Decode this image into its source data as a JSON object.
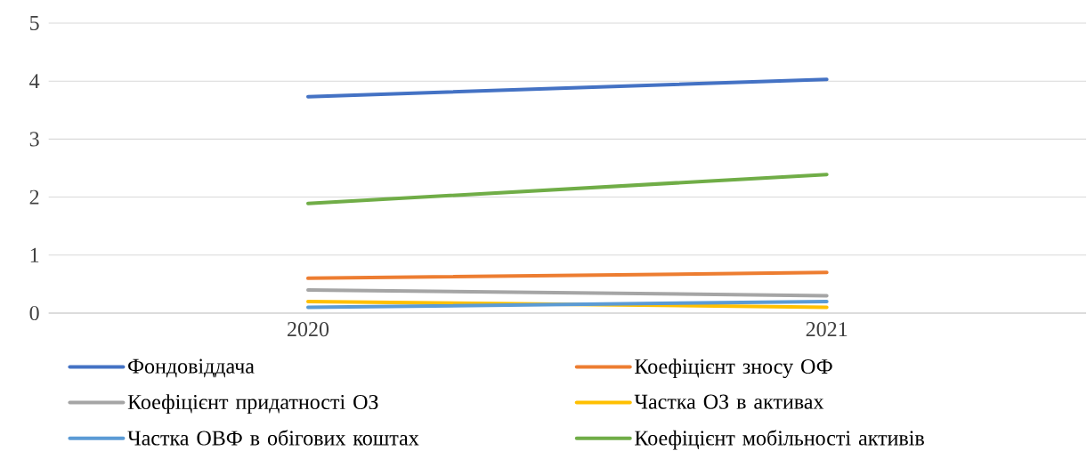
{
  "chart_data": {
    "type": "line",
    "categories": [
      "2020",
      "2021"
    ],
    "series": [
      {
        "name": "Фондовіддача",
        "color": "#4472c4",
        "values": [
          3.73,
          4.03
        ]
      },
      {
        "name": "Коефіцієнт зносу ОФ",
        "color": "#ed7d31",
        "values": [
          0.6,
          0.7
        ]
      },
      {
        "name": "Коефіцієнт придатності ОЗ",
        "color": "#a5a5a5",
        "values": [
          0.4,
          0.3
        ]
      },
      {
        "name": "Частка ОЗ в активах",
        "color": "#ffc000",
        "values": [
          0.2,
          0.1
        ]
      },
      {
        "name": "Частка ОВФ в обігових коштах",
        "color": "#5b9bd5",
        "values": [
          0.1,
          0.2
        ]
      },
      {
        "name": "Коефіцієнт мобільності активів",
        "color": "#70ad47",
        "values": [
          1.89,
          2.39
        ]
      }
    ],
    "ylim": [
      0,
      5
    ],
    "yticks": [
      0,
      1,
      2,
      3,
      4,
      5
    ],
    "grid": "y",
    "legend": "bottom"
  }
}
